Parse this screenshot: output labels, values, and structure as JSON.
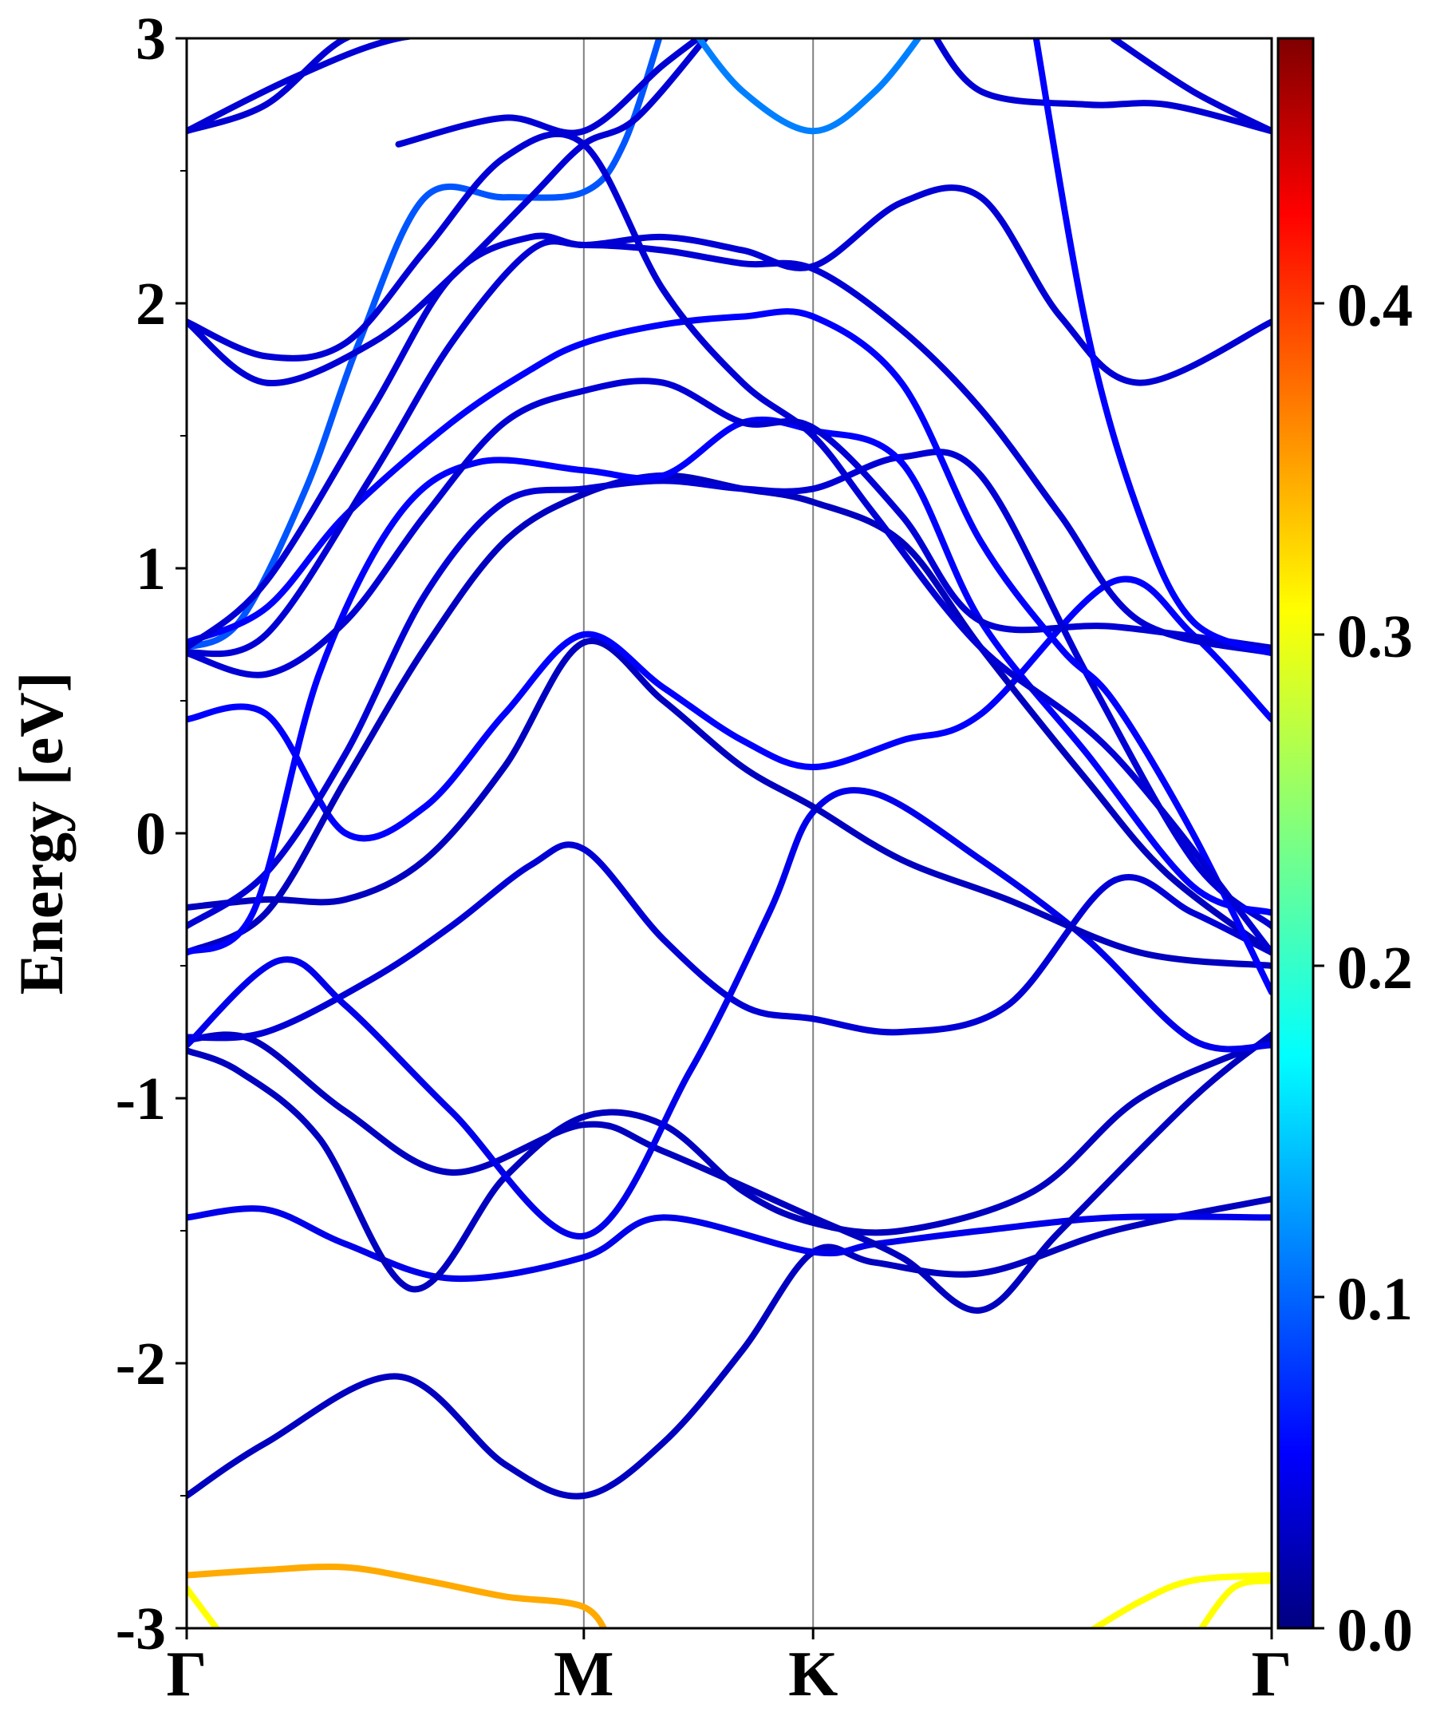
{
  "chart_data": {
    "type": "line",
    "title": "",
    "xlabel": "",
    "ylabel": "Energy [eV]",
    "ylim": [
      -3,
      3
    ],
    "yticks": [
      "3",
      "2",
      "1",
      "0",
      "-1",
      "-2",
      "-3"
    ],
    "ytick_values": [
      3,
      2,
      1,
      0,
      -1,
      -2,
      -3
    ],
    "high_symmetry_points": [
      {
        "label": "Γ",
        "k": 0.0
      },
      {
        "label": "M",
        "k": 1.5
      },
      {
        "label": "K",
        "k": 2.366
      },
      {
        "label": "Γ",
        "k": 4.098
      }
    ],
    "colorbar": {
      "colormap": "jet",
      "range": [
        0.0,
        0.48
      ],
      "ticks": [
        "0.0",
        "0.1",
        "0.2",
        "0.3",
        "0.4"
      ],
      "tick_values": [
        0.0,
        0.1,
        0.2,
        0.3,
        0.4
      ]
    },
    "grid": false,
    "series": [
      {
        "weight": 0.03,
        "points": [
          [
            0.0,
            -2.5
          ],
          [
            0.3,
            -2.3
          ],
          [
            0.8,
            -2.05
          ],
          [
            1.2,
            -2.38
          ],
          [
            1.5,
            -2.5
          ],
          [
            1.8,
            -2.3
          ],
          [
            2.1,
            -1.95
          ],
          [
            2.366,
            -1.58
          ],
          [
            2.6,
            -1.62
          ],
          [
            3.0,
            -1.66
          ],
          [
            3.5,
            -1.5
          ],
          [
            4.098,
            -1.38
          ]
        ]
      },
      {
        "weight": 0.05,
        "points": [
          [
            0.0,
            -1.45
          ],
          [
            0.3,
            -1.42
          ],
          [
            0.6,
            -1.55
          ],
          [
            1.0,
            -1.68
          ],
          [
            1.5,
            -1.6
          ],
          [
            1.8,
            -1.45
          ],
          [
            2.366,
            -1.58
          ],
          [
            2.6,
            -1.55
          ],
          [
            3.0,
            -1.5
          ],
          [
            3.5,
            -1.45
          ],
          [
            4.098,
            -1.45
          ]
        ]
      },
      {
        "weight": 0.03,
        "points": [
          [
            0.0,
            -0.82
          ],
          [
            0.2,
            -0.9
          ],
          [
            0.5,
            -1.15
          ],
          [
            0.85,
            -1.72
          ],
          [
            1.2,
            -1.3
          ],
          [
            1.5,
            -1.07
          ],
          [
            1.8,
            -1.1
          ],
          [
            2.1,
            -1.35
          ],
          [
            2.366,
            -1.47
          ],
          [
            2.7,
            -1.5
          ],
          [
            3.2,
            -1.35
          ],
          [
            3.6,
            -1.0
          ],
          [
            4.098,
            -0.78
          ]
        ]
      },
      {
        "weight": 0.03,
        "points": [
          [
            0.0,
            -0.78
          ],
          [
            0.25,
            -0.78
          ],
          [
            0.6,
            -1.05
          ],
          [
            1.0,
            -1.28
          ],
          [
            1.5,
            -1.1
          ],
          [
            1.8,
            -1.2
          ],
          [
            2.366,
            -1.45
          ],
          [
            2.7,
            -1.6
          ],
          [
            3.0,
            -1.8
          ],
          [
            3.3,
            -1.5
          ],
          [
            3.8,
            -1.0
          ],
          [
            4.098,
            -0.76
          ]
        ]
      },
      {
        "weight": 0.04,
        "points": [
          [
            0.0,
            -0.77
          ],
          [
            0.3,
            -0.75
          ],
          [
            0.7,
            -0.55
          ],
          [
            1.0,
            -0.35
          ],
          [
            1.3,
            -0.12
          ],
          [
            1.5,
            -0.06
          ],
          [
            1.8,
            -0.4
          ],
          [
            2.1,
            -0.65
          ],
          [
            2.366,
            -0.7
          ],
          [
            2.7,
            -0.75
          ],
          [
            3.1,
            -0.65
          ],
          [
            3.5,
            -0.18
          ],
          [
            3.8,
            -0.3
          ],
          [
            4.098,
            -0.45
          ]
        ]
      },
      {
        "weight": 0.05,
        "points": [
          [
            0.0,
            -0.8
          ],
          [
            0.35,
            -0.48
          ],
          [
            0.6,
            -0.65
          ],
          [
            1.0,
            -1.05
          ],
          [
            1.5,
            -1.52
          ],
          [
            1.9,
            -0.9
          ],
          [
            2.2,
            -0.3
          ],
          [
            2.366,
            0.08
          ],
          [
            2.6,
            0.15
          ],
          [
            3.0,
            -0.1
          ],
          [
            3.4,
            -0.4
          ],
          [
            3.8,
            -0.78
          ],
          [
            4.098,
            -0.8
          ]
        ]
      },
      {
        "weight": 0.03,
        "points": [
          [
            0.0,
            -0.28
          ],
          [
            0.3,
            -0.25
          ],
          [
            0.6,
            -0.25
          ],
          [
            0.9,
            -0.1
          ],
          [
            1.2,
            0.25
          ],
          [
            1.5,
            0.72
          ],
          [
            1.8,
            0.5
          ],
          [
            2.1,
            0.25
          ],
          [
            2.366,
            0.1
          ],
          [
            2.7,
            -0.1
          ],
          [
            3.1,
            -0.25
          ],
          [
            3.6,
            -0.45
          ],
          [
            4.098,
            -0.5
          ]
        ]
      },
      {
        "weight": 0.06,
        "points": [
          [
            0.0,
            0.43
          ],
          [
            0.3,
            0.45
          ],
          [
            0.6,
            0.0
          ],
          [
            0.9,
            0.1
          ],
          [
            1.2,
            0.45
          ],
          [
            1.5,
            0.75
          ],
          [
            1.8,
            0.55
          ],
          [
            2.1,
            0.35
          ],
          [
            2.366,
            0.25
          ],
          [
            2.7,
            0.35
          ],
          [
            3.0,
            0.45
          ],
          [
            3.5,
            0.95
          ],
          [
            3.8,
            0.75
          ],
          [
            4.098,
            0.43
          ]
        ]
      },
      {
        "weight": 0.03,
        "points": [
          [
            0.0,
            -0.45
          ],
          [
            0.3,
            -0.3
          ],
          [
            0.6,
            0.2
          ],
          [
            0.9,
            0.7
          ],
          [
            1.2,
            1.1
          ],
          [
            1.5,
            1.28
          ],
          [
            1.8,
            1.35
          ],
          [
            2.1,
            1.3
          ],
          [
            2.366,
            1.25
          ],
          [
            2.7,
            1.1
          ],
          [
            3.0,
            0.7
          ],
          [
            3.4,
            0.2
          ],
          [
            3.7,
            -0.15
          ],
          [
            4.098,
            -0.45
          ]
        ]
      },
      {
        "weight": 0.04,
        "points": [
          [
            0.0,
            -0.35
          ],
          [
            0.3,
            -0.15
          ],
          [
            0.6,
            0.3
          ],
          [
            0.9,
            0.9
          ],
          [
            1.2,
            1.25
          ],
          [
            1.5,
            1.3
          ],
          [
            1.8,
            1.33
          ],
          [
            2.1,
            1.3
          ],
          [
            2.366,
            1.3
          ],
          [
            2.7,
            1.42
          ],
          [
            3.0,
            1.35
          ],
          [
            3.4,
            0.6
          ],
          [
            3.8,
            -0.1
          ],
          [
            4.098,
            -0.35
          ]
        ]
      },
      {
        "weight": 0.06,
        "points": [
          [
            0.0,
            -0.45
          ],
          [
            0.25,
            -0.3
          ],
          [
            0.5,
            0.6
          ],
          [
            0.8,
            1.2
          ],
          [
            1.1,
            1.4
          ],
          [
            1.5,
            1.37
          ],
          [
            1.8,
            1.35
          ],
          [
            2.1,
            1.55
          ],
          [
            2.366,
            1.52
          ],
          [
            2.7,
            1.4
          ],
          [
            3.0,
            0.8
          ],
          [
            3.4,
            0.3
          ],
          [
            3.8,
            -0.2
          ],
          [
            4.098,
            -0.3
          ]
        ]
      },
      {
        "weight": 0.04,
        "points": [
          [
            0.0,
            0.68
          ],
          [
            0.3,
            0.6
          ],
          [
            0.6,
            0.8
          ],
          [
            0.9,
            1.2
          ],
          [
            1.2,
            1.55
          ],
          [
            1.5,
            1.67
          ],
          [
            1.8,
            1.7
          ],
          [
            2.1,
            1.55
          ],
          [
            2.366,
            1.53
          ],
          [
            2.7,
            1.2
          ],
          [
            3.0,
            0.8
          ],
          [
            3.5,
            0.78
          ],
          [
            4.098,
            0.7
          ]
        ]
      },
      {
        "weight": 0.1,
        "points": [
          [
            0.0,
            0.7
          ],
          [
            0.2,
            0.8
          ],
          [
            0.45,
            1.3
          ],
          [
            0.65,
            1.85
          ],
          [
            0.9,
            2.4
          ],
          [
            1.2,
            2.4
          ],
          [
            1.5,
            2.42
          ],
          [
            1.65,
            2.6
          ],
          [
            1.8,
            3.05
          ]
        ]
      },
      {
        "weight": 0.06,
        "points": [
          [
            0.0,
            0.72
          ],
          [
            0.3,
            0.85
          ],
          [
            0.6,
            1.2
          ],
          [
            1.0,
            1.55
          ],
          [
            1.3,
            1.75
          ],
          [
            1.5,
            1.85
          ],
          [
            1.8,
            1.92
          ],
          [
            2.1,
            1.95
          ],
          [
            2.366,
            1.95
          ],
          [
            2.7,
            1.7
          ],
          [
            3.0,
            1.1
          ],
          [
            3.3,
            0.7
          ],
          [
            3.5,
            0.5
          ],
          [
            3.8,
            0.0
          ],
          [
            4.098,
            -0.6
          ]
        ]
      },
      {
        "weight": 0.04,
        "points": [
          [
            0.0,
            0.68
          ],
          [
            0.3,
            0.75
          ],
          [
            0.7,
            1.35
          ],
          [
            1.0,
            1.85
          ],
          [
            1.3,
            2.2
          ],
          [
            1.5,
            2.22
          ],
          [
            1.8,
            2.2
          ],
          [
            2.1,
            2.15
          ],
          [
            2.366,
            2.13
          ],
          [
            2.7,
            1.9
          ],
          [
            3.0,
            1.6
          ],
          [
            3.3,
            1.2
          ],
          [
            3.6,
            0.8
          ],
          [
            4.098,
            0.68
          ]
        ]
      },
      {
        "weight": 0.04,
        "points": [
          [
            0.0,
            0.7
          ],
          [
            0.3,
            0.95
          ],
          [
            0.7,
            1.6
          ],
          [
            1.0,
            2.1
          ],
          [
            1.3,
            2.25
          ],
          [
            1.5,
            2.22
          ],
          [
            1.8,
            2.25
          ],
          [
            2.1,
            2.2
          ],
          [
            2.366,
            2.14
          ],
          [
            2.7,
            2.38
          ],
          [
            3.0,
            2.4
          ],
          [
            3.3,
            1.95
          ],
          [
            3.6,
            1.7
          ],
          [
            4.098,
            1.93
          ]
        ]
      },
      {
        "weight": 0.04,
        "points": [
          [
            0.0,
            1.93
          ],
          [
            0.3,
            1.8
          ],
          [
            0.6,
            1.85
          ],
          [
            0.9,
            2.2
          ],
          [
            1.2,
            2.55
          ],
          [
            1.5,
            2.6
          ],
          [
            1.8,
            2.05
          ],
          [
            2.1,
            1.7
          ],
          [
            2.366,
            1.5
          ],
          [
            2.6,
            1.2
          ],
          [
            3.0,
            0.7
          ],
          [
            3.5,
            0.3
          ],
          [
            4.098,
            -0.45
          ]
        ]
      },
      {
        "weight": 0.04,
        "points": [
          [
            0.0,
            1.93
          ],
          [
            0.3,
            1.7
          ],
          [
            0.7,
            1.85
          ],
          [
            1.0,
            2.1
          ],
          [
            1.3,
            2.4
          ],
          [
            1.5,
            2.6
          ],
          [
            1.7,
            2.7
          ],
          [
            2.0,
            3.05
          ]
        ]
      },
      {
        "weight": 0.04,
        "points": [
          [
            0.0,
            2.65
          ],
          [
            0.3,
            2.75
          ],
          [
            0.6,
            3.0
          ],
          [
            0.9,
            3.05
          ]
        ]
      },
      {
        "weight": 0.04,
        "points": [
          [
            0.0,
            2.65
          ],
          [
            0.4,
            2.85
          ],
          [
            0.8,
            3.0
          ],
          [
            1.2,
            3.02
          ]
        ]
      },
      {
        "weight": 0.04,
        "points": [
          [
            0.8,
            2.6
          ],
          [
            1.2,
            2.7
          ],
          [
            1.5,
            2.65
          ],
          [
            1.8,
            2.9
          ],
          [
            2.0,
            3.05
          ]
        ]
      },
      {
        "weight": 0.12,
        "points": [
          [
            1.9,
            3.05
          ],
          [
            2.1,
            2.8
          ],
          [
            2.366,
            2.65
          ],
          [
            2.6,
            2.8
          ],
          [
            2.8,
            3.05
          ]
        ]
      },
      {
        "weight": 0.04,
        "points": [
          [
            2.8,
            3.05
          ],
          [
            3.0,
            2.8
          ],
          [
            3.4,
            2.75
          ],
          [
            3.7,
            2.75
          ],
          [
            4.098,
            2.65
          ]
        ]
      },
      {
        "weight": 0.04,
        "points": [
          [
            3.5,
            3.0
          ],
          [
            3.8,
            2.8
          ],
          [
            4.098,
            2.65
          ]
        ]
      },
      {
        "weight": 0.06,
        "points": [
          [
            3.2,
            3.05
          ],
          [
            3.4,
            1.9
          ],
          [
            3.6,
            1.2
          ],
          [
            3.8,
            0.8
          ],
          [
            4.098,
            0.68
          ]
        ]
      },
      {
        "weight": 0.3,
        "points": [
          [
            0.0,
            -2.85
          ],
          [
            0.15,
            -3.05
          ]
        ]
      },
      {
        "weight": 0.34,
        "points": [
          [
            0.0,
            -2.8
          ],
          [
            0.3,
            -2.78
          ],
          [
            0.6,
            -2.77
          ],
          [
            0.9,
            -2.82
          ],
          [
            1.2,
            -2.88
          ],
          [
            1.5,
            -2.92
          ],
          [
            1.6,
            -3.05
          ]
        ]
      },
      {
        "weight": 0.3,
        "points": [
          [
            3.35,
            -3.05
          ],
          [
            3.6,
            -2.9
          ],
          [
            3.8,
            -2.82
          ],
          [
            4.098,
            -2.8
          ]
        ]
      },
      {
        "weight": 0.3,
        "points": [
          [
            3.8,
            -3.05
          ],
          [
            3.95,
            -2.85
          ],
          [
            4.098,
            -2.82
          ]
        ]
      }
    ]
  }
}
